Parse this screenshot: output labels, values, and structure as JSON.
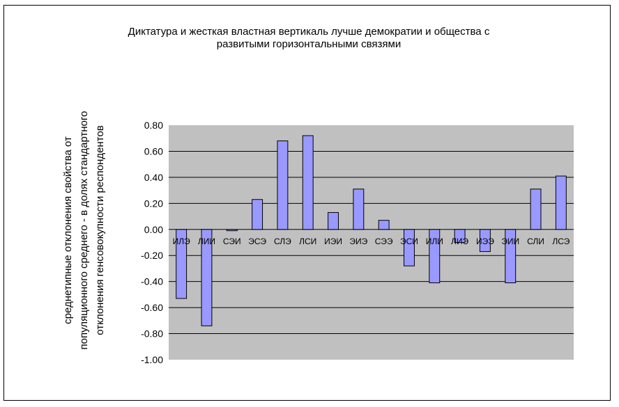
{
  "chart_data": {
    "type": "bar",
    "title_lines": [
      "Диктатура и жесткая властная вертикаль лучше демократии и общества с",
      "развитыми горизонтальными связями"
    ],
    "xlabel": "",
    "ylabel_lines": [
      "среднетипные отклонения свойства от",
      "популяционного среднего - в долях стандартного",
      "отклонения генсовокупности респондентов"
    ],
    "categories": [
      "ИЛЭ",
      "ЛИИ",
      "СЭИ",
      "ЭСЭ",
      "СЛЭ",
      "ЛСИ",
      "ИЭИ",
      "ЭИЭ",
      "СЭЭ",
      "ЭСИ",
      "ИЛИ",
      "ЛИЭ",
      "ИЭЭ",
      "ЭИИ",
      "СЛИ",
      "ЛСЭ"
    ],
    "values": [
      -0.53,
      -0.74,
      -0.01,
      0.23,
      0.68,
      0.72,
      0.13,
      0.31,
      0.07,
      -0.28,
      -0.41,
      -0.1,
      -0.17,
      -0.41,
      0.31,
      0.41
    ],
    "ylim": [
      -1.0,
      0.8
    ],
    "yticks": [
      0.8,
      0.6,
      0.4,
      0.2,
      0.0,
      -0.2,
      -0.4,
      -0.6,
      -0.8,
      -1.0
    ],
    "ytick_labels": [
      "0.80",
      "0.60",
      "0.40",
      "0.20",
      "0.00",
      "-0.20",
      "-0.40",
      "-0.60",
      "-0.80",
      "-1.00"
    ],
    "grid": true,
    "legend": "none",
    "colors": {
      "bar_fill": "#9999ff",
      "bar_stroke": "#000000",
      "plot_background": "#c0c0c0",
      "grid": "#000000"
    }
  }
}
